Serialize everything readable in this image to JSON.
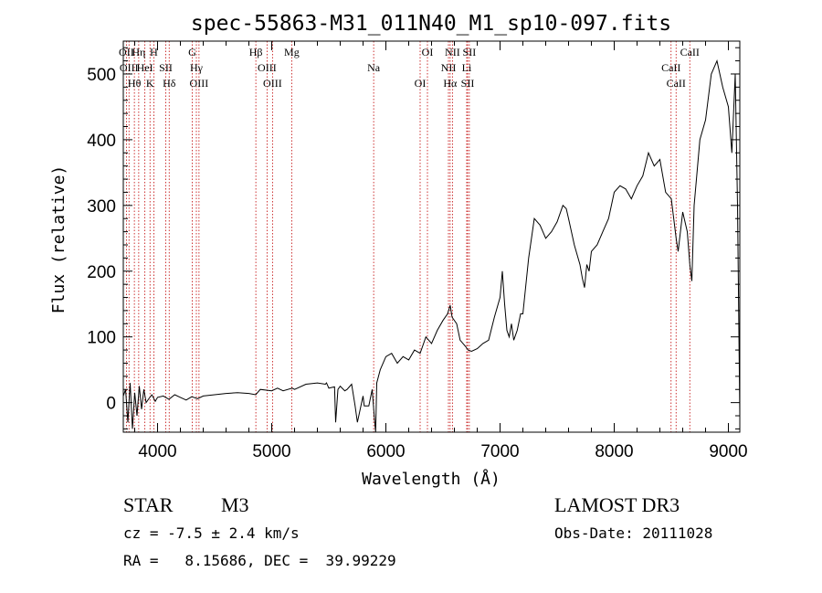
{
  "chart_data": {
    "type": "line",
    "title": "spec-55863-M31_011N40_M1_sp10-097.fits",
    "xlabel": "Wavelength (Å)",
    "ylabel": "Flux (relative)",
    "xlim": [
      3700,
      9100
    ],
    "ylim": [
      -45,
      550
    ],
    "xticks": [
      4000,
      5000,
      6000,
      7000,
      8000,
      9000
    ],
    "yticks": [
      0,
      100,
      200,
      300,
      400,
      500
    ],
    "series": [
      {
        "name": "flux",
        "x": [
          3700,
          3720,
          3740,
          3760,
          3780,
          3800,
          3820,
          3840,
          3860,
          3880,
          3900,
          3920,
          3950,
          3980,
          4000,
          4050,
          4100,
          4150,
          4200,
          4250,
          4300,
          4350,
          4400,
          4500,
          4600,
          4700,
          4800,
          4860,
          4900,
          5000,
          5050,
          5100,
          5180,
          5200,
          5300,
          5400,
          5470,
          5480,
          5500,
          5550,
          5560,
          5580,
          5600,
          5640,
          5660,
          5700,
          5730,
          5750,
          5800,
          5810,
          5830,
          5850,
          5880,
          5900,
          5910,
          5920,
          5950,
          6000,
          6050,
          6100,
          6150,
          6200,
          6250,
          6300,
          6350,
          6400,
          6450,
          6500,
          6540,
          6563,
          6580,
          6620,
          6650,
          6700,
          6720,
          6750,
          6800,
          6850,
          6900,
          6950,
          7000,
          7020,
          7040,
          7060,
          7080,
          7100,
          7120,
          7150,
          7180,
          7200,
          7250,
          7300,
          7350,
          7400,
          7450,
          7500,
          7550,
          7580,
          7600,
          7650,
          7700,
          7720,
          7740,
          7760,
          7780,
          7800,
          7850,
          7900,
          7950,
          8000,
          8050,
          8100,
          8150,
          8200,
          8250,
          8300,
          8350,
          8400,
          8450,
          8500,
          8542,
          8560,
          8600,
          8640,
          8662,
          8680,
          8700,
          8750,
          8800,
          8850,
          8900,
          8950,
          9000,
          9030,
          9060,
          9080,
          9100
        ],
        "y": [
          10,
          20,
          -30,
          30,
          -40,
          15,
          -20,
          25,
          -10,
          20,
          0,
          5,
          12,
          2,
          8,
          10,
          5,
          12,
          8,
          4,
          9,
          6,
          10,
          12,
          14,
          15,
          14,
          12,
          20,
          18,
          22,
          18,
          22,
          20,
          28,
          30,
          28,
          30,
          22,
          24,
          -30,
          20,
          25,
          18,
          20,
          28,
          -5,
          -30,
          10,
          -5,
          -5,
          -5,
          20,
          -25,
          -45,
          30,
          50,
          70,
          75,
          60,
          70,
          65,
          80,
          75,
          100,
          90,
          110,
          125,
          135,
          148,
          130,
          120,
          95,
          85,
          80,
          78,
          82,
          90,
          95,
          130,
          160,
          200,
          150,
          110,
          100,
          120,
          95,
          110,
          135,
          135,
          220,
          280,
          270,
          250,
          260,
          275,
          300,
          295,
          280,
          240,
          210,
          190,
          175,
          210,
          200,
          230,
          240,
          260,
          280,
          320,
          330,
          325,
          310,
          330,
          345,
          380,
          360,
          370,
          320,
          310,
          250,
          230,
          290,
          260,
          210,
          185,
          300,
          400,
          430,
          500,
          520,
          480,
          450,
          380,
          500,
          300,
          -20
        ]
      }
    ],
    "lines": [
      {
        "wave": 3727,
        "labels": [
          "OII"
        ]
      },
      {
        "wave": 3750,
        "labels": [
          "OIII"
        ]
      },
      {
        "wave": 3797,
        "labels": [
          "Hθ"
        ]
      },
      {
        "wave": 3835,
        "labels": [
          "Hη"
        ]
      },
      {
        "wave": 3889,
        "labels": [
          "HeI"
        ]
      },
      {
        "wave": 3934,
        "labels": [
          "K"
        ]
      },
      {
        "wave": 3968,
        "labels": [
          "H"
        ]
      },
      {
        "wave": 4072,
        "labels": [
          "SII"
        ]
      },
      {
        "wave": 4102,
        "labels": [
          "Hδ"
        ]
      },
      {
        "wave": 4304,
        "labels": [
          "G"
        ]
      },
      {
        "wave": 4340,
        "labels": [
          "Hγ"
        ]
      },
      {
        "wave": 4363,
        "labels": [
          "OIII"
        ]
      },
      {
        "wave": 4861,
        "labels": [
          "Hβ"
        ]
      },
      {
        "wave": 4959,
        "labels": [
          "OIII"
        ]
      },
      {
        "wave": 5007,
        "labels": [
          "OIII"
        ]
      },
      {
        "wave": 5175,
        "labels": [
          "Mg"
        ]
      },
      {
        "wave": 5893,
        "labels": [
          "Na"
        ]
      },
      {
        "wave": 6300,
        "labels": [
          "OI"
        ]
      },
      {
        "wave": 6364,
        "labels": [
          "OI"
        ]
      },
      {
        "wave": 6548,
        "labels": [
          "NII"
        ]
      },
      {
        "wave": 6563,
        "labels": [
          "Hα"
        ]
      },
      {
        "wave": 6583,
        "labels": [
          "NII"
        ]
      },
      {
        "wave": 6708,
        "labels": [
          "Li"
        ]
      },
      {
        "wave": 6716,
        "labels": [
          "SII"
        ]
      },
      {
        "wave": 6731,
        "labels": [
          "SII"
        ]
      },
      {
        "wave": 8498,
        "labels": [
          "CaII"
        ]
      },
      {
        "wave": 8542,
        "labels": [
          "CaII"
        ]
      },
      {
        "wave": 8662,
        "labels": [
          "CaII"
        ]
      }
    ]
  },
  "info": {
    "class": "STAR",
    "subclass": "M3",
    "survey": "LAMOST DR3",
    "cz": "cz = -7.5 ± 2.4 km/s",
    "obs_date": "Obs-Date: 20111028",
    "coords": "RA =   8.15686, DEC =  39.99229"
  },
  "colors": {
    "line_marker": "#c00000",
    "spectrum": "#000000"
  }
}
